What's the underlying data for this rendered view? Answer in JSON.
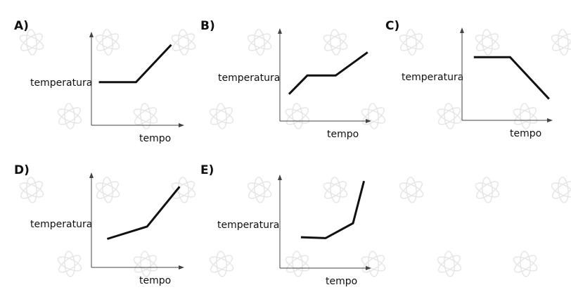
{
  "panels": [
    {
      "label": "A)",
      "ylabel": "temperatura",
      "xlabel": "tempo"
    },
    {
      "label": "B)",
      "ylabel": "temperatura",
      "xlabel": "tempo"
    },
    {
      "label": "C)",
      "ylabel": "temperatura",
      "xlabel": "tempo"
    },
    {
      "label": "D)",
      "ylabel": "temperatura",
      "xlabel": "tempo"
    },
    {
      "label": "E)",
      "ylabel": "temperatura",
      "xlabel": "tempo"
    }
  ],
  "colors": {
    "line": "#111111",
    "axis": "#444444",
    "watermark": "#e6e6e6"
  },
  "watermark_icon": "cosseno-watermark-icon",
  "chart_data": [
    {
      "panel": "A)",
      "type": "line",
      "xlabel": "tempo",
      "ylabel": "temperatura",
      "grid": false,
      "xlim": [
        0,
        10
      ],
      "ylim": [
        0,
        10
      ],
      "series": [
        {
          "x": [
            0.8,
            4.8,
            8.6
          ],
          "y": [
            4.6,
            4.6,
            8.6
          ]
        }
      ]
    },
    {
      "panel": "B)",
      "type": "line",
      "xlabel": "tempo",
      "ylabel": "temperatura",
      "grid": false,
      "xlim": [
        0,
        10
      ],
      "ylim": [
        0,
        10
      ],
      "series": [
        {
          "x": [
            1.0,
            3.0,
            6.1,
            9.6
          ],
          "y": [
            2.9,
            4.9,
            4.9,
            7.4
          ]
        }
      ]
    },
    {
      "panel": "C)",
      "type": "line",
      "xlabel": "tempo",
      "ylabel": "temperatura",
      "grid": false,
      "xlim": [
        0,
        10
      ],
      "ylim": [
        0,
        10
      ],
      "series": [
        {
          "x": [
            1.3,
            5.3,
            9.6
          ],
          "y": [
            6.8,
            6.8,
            2.3
          ]
        }
      ]
    },
    {
      "panel": "D)",
      "type": "line",
      "xlabel": "tempo",
      "ylabel": "temperatura",
      "grid": false,
      "xlim": [
        0,
        10
      ],
      "ylim": [
        0,
        10
      ],
      "series": [
        {
          "x": [
            1.7,
            6.0,
            9.5
          ],
          "y": [
            3.0,
            4.3,
            8.5
          ]
        }
      ]
    },
    {
      "panel": "E)",
      "type": "line",
      "xlabel": "tempo",
      "ylabel": "temperatura",
      "grid": false,
      "xlim": [
        0,
        10
      ],
      "ylim": [
        0,
        10
      ],
      "series": [
        {
          "x": [
            2.3,
            5.0,
            8.0,
            9.2
          ],
          "y": [
            3.3,
            3.2,
            4.8,
            9.3
          ]
        }
      ]
    }
  ]
}
